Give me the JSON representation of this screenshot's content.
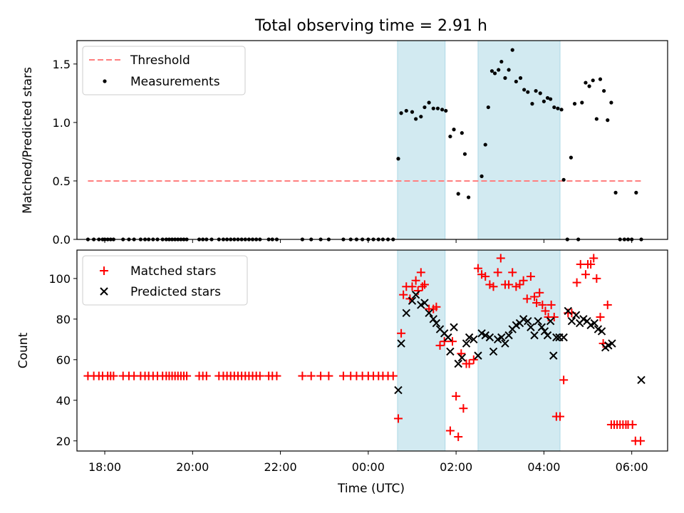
{
  "chart_data": {
    "type": "scatter",
    "title": "Total observing time = 2.91 h",
    "xlabel": "Time (UTC)",
    "x_unit": "hours UTC",
    "xlim": [
      "17:22",
      "06:49"
    ],
    "x_ticks": [
      "18:00",
      "20:00",
      "22:00",
      "00:00",
      "02:00",
      "04:00",
      "06:00"
    ],
    "shaded_intervals": [
      [
        "00:40",
        "01:45"
      ],
      [
        "02:30",
        "04:22"
      ]
    ],
    "shade_color": "#add8e6",
    "panels": [
      {
        "ylabel": "Matched/Predicted stars",
        "ylim": [
          0.0,
          1.7
        ],
        "y_ticks": [
          "0.0",
          "0.5",
          "1.0",
          "1.5"
        ],
        "legend_position": "upper-left",
        "series": [
          {
            "name": "Threshold",
            "kind": "dashed-line",
            "color": "#ff7f7f",
            "x": [
              "17:37",
              "06:13"
            ],
            "y": [
              0.5,
              0.5
            ]
          },
          {
            "name": "Measurements",
            "kind": "dot",
            "color": "#000000",
            "x": [
              "17:37",
              "17:45",
              "17:52",
              "17:57",
              "18:00",
              "18:04",
              "18:08",
              "18:12",
              "18:25",
              "18:33",
              "18:40",
              "18:49",
              "18:55",
              "19:00",
              "19:06",
              "19:12",
              "19:19",
              "19:24",
              "19:28",
              "19:32",
              "19:36",
              "19:40",
              "19:44",
              "19:48",
              "19:52",
              "20:09",
              "20:14",
              "20:19",
              "20:26",
              "20:36",
              "20:42",
              "20:47",
              "20:52",
              "20:57",
              "21:02",
              "21:07",
              "21:12",
              "21:17",
              "21:22",
              "21:27",
              "21:32",
              "21:44",
              "21:49",
              "21:55",
              "22:30",
              "22:42",
              "22:55",
              "23:06",
              "23:26",
              "23:36",
              "23:44",
              "23:52",
              "00:00",
              "00:07",
              "00:14",
              "00:20",
              "00:27",
              "00:34",
              "00:41",
              "00:45",
              "00:52",
              "01:00",
              "01:05",
              "01:12",
              "01:17",
              "01:23",
              "01:29",
              "01:35",
              "01:41",
              "01:46",
              "01:52",
              "01:57",
              "02:03",
              "02:08",
              "02:12",
              "02:17",
              "02:35",
              "02:40",
              "02:44",
              "02:49",
              "02:53",
              "02:58",
              "03:02",
              "03:07",
              "03:12",
              "03:17",
              "03:22",
              "03:28",
              "03:33",
              "03:38",
              "03:44",
              "03:49",
              "03:55",
              "04:00",
              "04:05",
              "04:09",
              "04:14",
              "04:19",
              "04:24",
              "04:27",
              "04:32",
              "04:37",
              "04:42",
              "04:47",
              "04:52",
              "04:57",
              "05:02",
              "05:07",
              "05:12",
              "05:17",
              "05:22",
              "05:27",
              "05:32",
              "05:38",
              "05:44",
              "05:50",
              "05:55",
              "06:00",
              "06:06",
              "06:13"
            ],
            "y": [
              0,
              0,
              0,
              0,
              0,
              0,
              0,
              0,
              0,
              0,
              0,
              0,
              0,
              0,
              0,
              0,
              0,
              0,
              0,
              0,
              0,
              0,
              0,
              0,
              0,
              0,
              0,
              0,
              0,
              0,
              0,
              0,
              0,
              0,
              0,
              0,
              0,
              0,
              0,
              0,
              0,
              0,
              0,
              0,
              0,
              0,
              0,
              0,
              0,
              0,
              0,
              0,
              0,
              0,
              0,
              0,
              0,
              0,
              0.69,
              1.08,
              1.1,
              1.09,
              1.03,
              1.05,
              1.13,
              1.17,
              1.12,
              1.12,
              1.11,
              1.1,
              0.88,
              0.94,
              0.39,
              0.91,
              0.73,
              0.36,
              0.54,
              0.81,
              1.13,
              1.44,
              1.42,
              1.45,
              1.52,
              1.38,
              1.45,
              1.62,
              1.35,
              1.38,
              1.28,
              1.26,
              1.16,
              1.27,
              1.25,
              1.18,
              1.21,
              1.2,
              1.13,
              1.12,
              1.11,
              0.51,
              0,
              0.7,
              1.16,
              0,
              1.17,
              1.34,
              1.31,
              1.36,
              1.03,
              1.37,
              1.27,
              1.02,
              1.17,
              0.4,
              0,
              0,
              0,
              0,
              0.4,
              0
            ]
          }
        ]
      },
      {
        "ylabel": "Count",
        "ylim": [
          15,
          114
        ],
        "y_ticks": [
          "20",
          "40",
          "60",
          "80",
          "100"
        ],
        "legend_position": "upper-left",
        "series": [
          {
            "name": "Matched stars",
            "kind": "plus",
            "color": "#ff0000",
            "x": [
              "17:37",
              "17:45",
              "17:52",
              "17:57",
              "18:04",
              "18:08",
              "18:12",
              "18:25",
              "18:33",
              "18:40",
              "18:49",
              "18:55",
              "19:00",
              "19:06",
              "19:12",
              "19:19",
              "19:24",
              "19:28",
              "19:32",
              "19:36",
              "19:40",
              "19:44",
              "19:48",
              "19:52",
              "20:09",
              "20:14",
              "20:19",
              "20:36",
              "20:42",
              "20:47",
              "20:52",
              "20:57",
              "21:02",
              "21:07",
              "21:12",
              "21:17",
              "21:22",
              "21:27",
              "21:32",
              "21:44",
              "21:49",
              "21:55",
              "22:30",
              "22:42",
              "22:55",
              "23:06",
              "23:26",
              "23:36",
              "23:44",
              "23:52",
              "00:00",
              "00:07",
              "00:14",
              "00:20",
              "00:27",
              "00:34",
              "00:41",
              "00:45",
              "00:48",
              "00:52",
              "00:57",
              "01:00",
              "01:05",
              "01:08",
              "01:12",
              "01:14",
              "01:17",
              "01:23",
              "01:29",
              "01:33",
              "01:38",
              "01:44",
              "01:52",
              "01:55",
              "02:00",
              "02:03",
              "02:07",
              "02:10",
              "02:14",
              "02:18",
              "02:24",
              "02:30",
              "02:35",
              "02:40",
              "02:46",
              "02:51",
              "02:57",
              "03:01",
              "03:07",
              "03:12",
              "03:17",
              "03:22",
              "03:27",
              "03:32",
              "03:37",
              "03:42",
              "03:47",
              "03:50",
              "03:54",
              "03:58",
              "04:02",
              "04:06",
              "04:10",
              "04:14",
              "04:17",
              "04:22",
              "04:27",
              "04:33",
              "04:38",
              "04:45",
              "04:50",
              "04:57",
              "05:00",
              "05:04",
              "05:08",
              "05:12",
              "05:17",
              "05:21",
              "05:27",
              "05:32",
              "05:36",
              "05:40",
              "05:44",
              "05:48",
              "05:52",
              "05:55",
              "06:01",
              "06:05",
              "06:12"
            ],
            "y": [
              52,
              52,
              52,
              52,
              52,
              52,
              52,
              52,
              52,
              52,
              52,
              52,
              52,
              52,
              52,
              52,
              52,
              52,
              52,
              52,
              52,
              52,
              52,
              52,
              52,
              52,
              52,
              52,
              52,
              52,
              52,
              52,
              52,
              52,
              52,
              52,
              52,
              52,
              52,
              52,
              52,
              52,
              52,
              52,
              52,
              52,
              52,
              52,
              52,
              52,
              52,
              52,
              52,
              52,
              52,
              52,
              31,
              73,
              92,
              96,
              90,
              96,
              99,
              94,
              103,
              96,
              97,
              85,
              85,
              86,
              67,
              69,
              25,
              69,
              42,
              22,
              63,
              36,
              58,
              58,
              60,
              105,
              102,
              101,
              97,
              96,
              103,
              110,
              97,
              97,
              103,
              96,
              97,
              99,
              90,
              101,
              91,
              88,
              93,
              87,
              84,
              81,
              87,
              81,
              32,
              32,
              50,
              83,
              83,
              98,
              107,
              102,
              107,
              107,
              110,
              100,
              81,
              68,
              87,
              28,
              28,
              28,
              28,
              28,
              28,
              28,
              28,
              20,
              20
            ]
          },
          {
            "name": "Predicted stars",
            "kind": "x",
            "color": "#000000",
            "x": [
              "00:41",
              "00:45",
              "00:52",
              "01:00",
              "01:05",
              "01:12",
              "01:17",
              "01:23",
              "01:29",
              "01:33",
              "01:38",
              "01:44",
              "01:49",
              "01:52",
              "01:57",
              "02:03",
              "02:08",
              "02:14",
              "02:18",
              "02:24",
              "02:30",
              "02:35",
              "02:40",
              "02:46",
              "02:51",
              "02:57",
              "03:02",
              "03:07",
              "03:12",
              "03:17",
              "03:22",
              "03:27",
              "03:32",
              "03:38",
              "03:42",
              "03:47",
              "03:52",
              "03:57",
              "04:01",
              "04:05",
              "04:09",
              "04:13",
              "04:17",
              "04:21",
              "04:27",
              "04:33",
              "04:38",
              "04:44",
              "04:49",
              "04:54",
              "04:59",
              "05:04",
              "05:09",
              "05:14",
              "05:19",
              "05:24",
              "05:28",
              "05:33",
              "06:13"
            ],
            "y": [
              45,
              68,
              83,
              89,
              92,
              87,
              88,
              83,
              80,
              78,
              75,
              73,
              71,
              64,
              76,
              58,
              61,
              68,
              71,
              70,
              62,
              73,
              72,
              71,
              64,
              70,
              71,
              68,
              72,
              75,
              77,
              78,
              80,
              79,
              76,
              72,
              79,
              76,
              74,
              72,
              79,
              62,
              71,
              71,
              71,
              84,
              79,
              82,
              78,
              80,
              79,
              77,
              78,
              75,
              74,
              66,
              67,
              68,
              50
            ]
          }
        ]
      }
    ]
  }
}
